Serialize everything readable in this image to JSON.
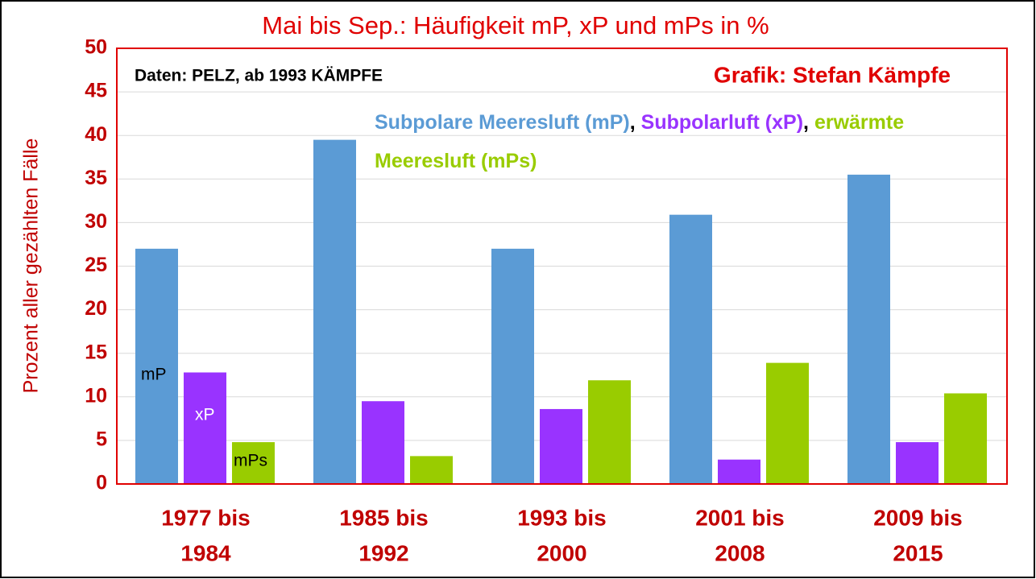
{
  "chart_data": {
    "type": "bar",
    "title": "Mai bis Sep.: Häufigkeit mP, xP und mPs in %",
    "y_label": "Prozent aller gezählten Fälle",
    "annotations": [
      "Daten: PELZ, ab 1993 KÄMPFE",
      "Grafik: Stefan Kämpfe"
    ],
    "legend_separator": ",",
    "bar_labels": [
      "mP",
      "xP",
      "mPs"
    ],
    "categories": [
      [
        "1977 bis",
        "1984"
      ],
      [
        "1985 bis",
        "1992"
      ],
      [
        "1993 bis",
        "2000"
      ],
      [
        "2001 bis",
        "2008"
      ],
      [
        "2009 bis",
        "2015"
      ]
    ],
    "series": [
      {
        "name": "Subpolare Meeresluft (mP)",
        "color": "#5b9bd5",
        "values": [
          27,
          39.5,
          27,
          30.9,
          35.5
        ]
      },
      {
        "name": "Subpolarluft (xP)",
        "color": "#9933ff",
        "values": [
          12.8,
          9.5,
          8.6,
          2.8,
          4.8
        ]
      },
      {
        "name": "erwärmte Meeresluft (mPs)",
        "color": "#99cc00",
        "values": [
          4.8,
          3.2,
          11.9,
          13.9,
          10.4
        ]
      }
    ],
    "ylim": [
      0,
      50
    ],
    "yticks": [
      0,
      5,
      10,
      15,
      20,
      25,
      30,
      35,
      40,
      45,
      50
    ],
    "grid": true
  }
}
